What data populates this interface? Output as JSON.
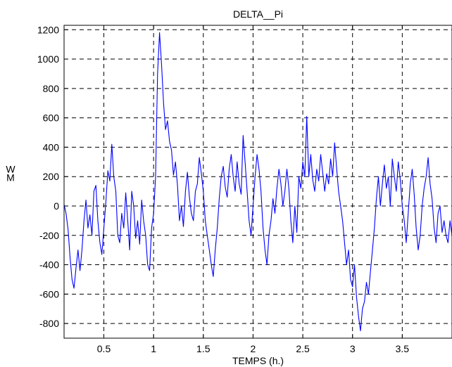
{
  "chart_data": {
    "type": "line",
    "title": "DELTA__Pi",
    "xlabel": "TEMPS (h.)",
    "ylabel": "W\nM",
    "ylabel_lines": [
      "W",
      "M"
    ],
    "xlim": [
      0.1,
      4.0
    ],
    "ylim": [
      -900,
      1230
    ],
    "grid": true,
    "grid_style": "dashed",
    "x_ticks": [
      0.5,
      1,
      1.5,
      2,
      2.5,
      3,
      3.5
    ],
    "x_tick_labels": [
      "0.5",
      "1",
      "1.5",
      "2",
      "2.5",
      "3",
      "3.5"
    ],
    "y_ticks": [
      1200,
      1000,
      800,
      600,
      400,
      200,
      0,
      -200,
      -400,
      -600,
      -800
    ],
    "y_tick_labels": [
      "1200",
      "1000",
      "800",
      "600",
      "400",
      "200",
      "0",
      "-200",
      "-400",
      "-600",
      "-800"
    ],
    "series": [
      {
        "color": "#0000ff",
        "points": [
          [
            0.1,
            10
          ],
          [
            0.12,
            -50
          ],
          [
            0.14,
            -160
          ],
          [
            0.16,
            -350
          ],
          [
            0.18,
            -500
          ],
          [
            0.2,
            -560
          ],
          [
            0.22,
            -420
          ],
          [
            0.24,
            -300
          ],
          [
            0.26,
            -440
          ],
          [
            0.28,
            -300
          ],
          [
            0.3,
            -100
          ],
          [
            0.32,
            40
          ],
          [
            0.34,
            -150
          ],
          [
            0.36,
            -60
          ],
          [
            0.38,
            -200
          ],
          [
            0.4,
            100
          ],
          [
            0.42,
            140
          ],
          [
            0.44,
            -100
          ],
          [
            0.46,
            -250
          ],
          [
            0.48,
            -330
          ],
          [
            0.5,
            -150
          ],
          [
            0.52,
            20
          ],
          [
            0.54,
            240
          ],
          [
            0.56,
            170
          ],
          [
            0.58,
            420
          ],
          [
            0.6,
            200
          ],
          [
            0.62,
            100
          ],
          [
            0.64,
            -200
          ],
          [
            0.66,
            -250
          ],
          [
            0.68,
            -50
          ],
          [
            0.7,
            -150
          ],
          [
            0.72,
            90
          ],
          [
            0.74,
            -100
          ],
          [
            0.76,
            -300
          ],
          [
            0.78,
            100
          ],
          [
            0.8,
            0
          ],
          [
            0.82,
            -220
          ],
          [
            0.84,
            -100
          ],
          [
            0.86,
            -260
          ],
          [
            0.88,
            40
          ],
          [
            0.9,
            -100
          ],
          [
            0.92,
            -200
          ],
          [
            0.94,
            -400
          ],
          [
            0.96,
            -440
          ],
          [
            0.98,
            -150
          ],
          [
            1.0,
            -50
          ],
          [
            1.02,
            200
          ],
          [
            1.04,
            900
          ],
          [
            1.06,
            1180
          ],
          [
            1.08,
            960
          ],
          [
            1.1,
            700
          ],
          [
            1.12,
            520
          ],
          [
            1.14,
            580
          ],
          [
            1.16,
            440
          ],
          [
            1.18,
            380
          ],
          [
            1.2,
            210
          ],
          [
            1.22,
            300
          ],
          [
            1.24,
            140
          ],
          [
            1.26,
            -100
          ],
          [
            1.28,
            0
          ],
          [
            1.3,
            -140
          ],
          [
            1.32,
            100
          ],
          [
            1.34,
            230
          ],
          [
            1.36,
            60
          ],
          [
            1.38,
            -50
          ],
          [
            1.4,
            -100
          ],
          [
            1.42,
            100
          ],
          [
            1.44,
            150
          ],
          [
            1.46,
            330
          ],
          [
            1.48,
            220
          ],
          [
            1.5,
            100
          ],
          [
            1.52,
            -100
          ],
          [
            1.54,
            -200
          ],
          [
            1.56,
            -300
          ],
          [
            1.58,
            -400
          ],
          [
            1.6,
            -480
          ],
          [
            1.62,
            -300
          ],
          [
            1.64,
            -150
          ],
          [
            1.66,
            50
          ],
          [
            1.68,
            200
          ],
          [
            1.7,
            270
          ],
          [
            1.72,
            130
          ],
          [
            1.74,
            60
          ],
          [
            1.76,
            250
          ],
          [
            1.78,
            350
          ],
          [
            1.8,
            200
          ],
          [
            1.82,
            100
          ],
          [
            1.84,
            300
          ],
          [
            1.86,
            150
          ],
          [
            1.88,
            80
          ],
          [
            1.9,
            480
          ],
          [
            1.92,
            300
          ],
          [
            1.94,
            100
          ],
          [
            1.96,
            -100
          ],
          [
            1.98,
            -200
          ],
          [
            2.0,
            0
          ],
          [
            2.02,
            200
          ],
          [
            2.04,
            350
          ],
          [
            2.06,
            250
          ],
          [
            2.08,
            100
          ],
          [
            2.1,
            -150
          ],
          [
            2.12,
            -300
          ],
          [
            2.14,
            -400
          ],
          [
            2.16,
            -200
          ],
          [
            2.18,
            -100
          ],
          [
            2.2,
            50
          ],
          [
            2.22,
            -50
          ],
          [
            2.24,
            120
          ],
          [
            2.26,
            250
          ],
          [
            2.28,
            150
          ],
          [
            2.3,
            0
          ],
          [
            2.32,
            100
          ],
          [
            2.34,
            250
          ],
          [
            2.36,
            120
          ],
          [
            2.38,
            -100
          ],
          [
            2.4,
            -250
          ],
          [
            2.42,
            0
          ],
          [
            2.44,
            -180
          ],
          [
            2.46,
            200
          ],
          [
            2.48,
            120
          ],
          [
            2.5,
            300
          ],
          [
            2.52,
            200
          ],
          [
            2.54,
            610
          ],
          [
            2.56,
            200
          ],
          [
            2.58,
            350
          ],
          [
            2.6,
            180
          ],
          [
            2.62,
            100
          ],
          [
            2.64,
            250
          ],
          [
            2.66,
            170
          ],
          [
            2.68,
            350
          ],
          [
            2.7,
            230
          ],
          [
            2.72,
            100
          ],
          [
            2.74,
            220
          ],
          [
            2.76,
            150
          ],
          [
            2.78,
            320
          ],
          [
            2.8,
            200
          ],
          [
            2.82,
            430
          ],
          [
            2.84,
            260
          ],
          [
            2.86,
            100
          ],
          [
            2.88,
            0
          ],
          [
            2.9,
            -100
          ],
          [
            2.92,
            -250
          ],
          [
            2.94,
            -400
          ],
          [
            2.96,
            -300
          ],
          [
            2.98,
            -500
          ],
          [
            3.0,
            -550
          ],
          [
            3.02,
            -400
          ],
          [
            3.04,
            -620
          ],
          [
            3.06,
            -750
          ],
          [
            3.08,
            -850
          ],
          [
            3.1,
            -700
          ],
          [
            3.12,
            -650
          ],
          [
            3.14,
            -520
          ],
          [
            3.16,
            -600
          ],
          [
            3.18,
            -450
          ],
          [
            3.2,
            -300
          ],
          [
            3.22,
            -150
          ],
          [
            3.24,
            50
          ],
          [
            3.26,
            200
          ],
          [
            3.28,
            0
          ],
          [
            3.3,
            150
          ],
          [
            3.32,
            280
          ],
          [
            3.34,
            120
          ],
          [
            3.36,
            200
          ],
          [
            3.38,
            0
          ],
          [
            3.4,
            320
          ],
          [
            3.42,
            200
          ],
          [
            3.44,
            100
          ],
          [
            3.46,
            300
          ],
          [
            3.48,
            180
          ],
          [
            3.5,
            0
          ],
          [
            3.52,
            -100
          ],
          [
            3.54,
            -250
          ],
          [
            3.56,
            -50
          ],
          [
            3.58,
            150
          ],
          [
            3.6,
            250
          ],
          [
            3.62,
            80
          ],
          [
            3.64,
            -150
          ],
          [
            3.66,
            -300
          ],
          [
            3.68,
            -200
          ],
          [
            3.7,
            0
          ],
          [
            3.72,
            120
          ],
          [
            3.74,
            200
          ],
          [
            3.76,
            330
          ],
          [
            3.78,
            150
          ],
          [
            3.8,
            50
          ],
          [
            3.82,
            -150
          ],
          [
            3.84,
            -250
          ],
          [
            3.86,
            -50
          ],
          [
            3.88,
            0
          ],
          [
            3.9,
            -180
          ],
          [
            3.92,
            -100
          ],
          [
            3.94,
            -200
          ],
          [
            3.96,
            -250
          ],
          [
            3.98,
            -100
          ],
          [
            4.0,
            -200
          ]
        ]
      }
    ]
  }
}
